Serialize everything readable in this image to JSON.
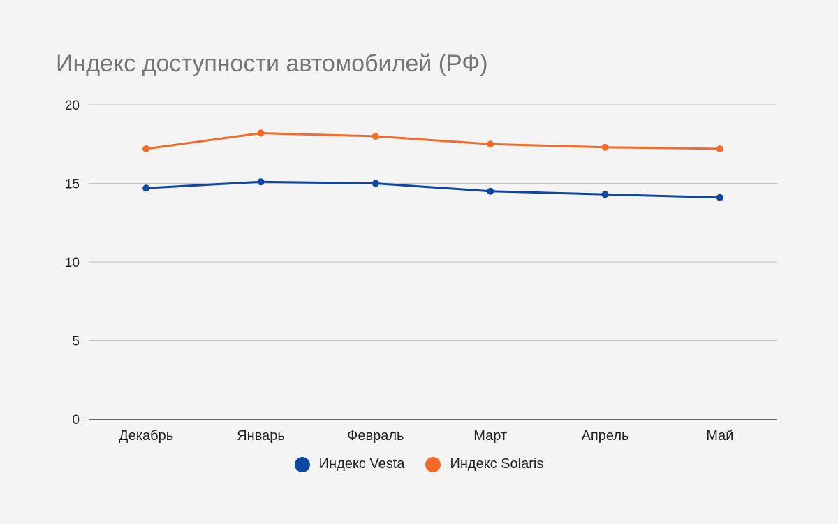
{
  "chart_data": {
    "type": "line",
    "title": "Индекс доступности автомобилей (РФ)",
    "categories": [
      "Декабрь",
      "Январь",
      "Февраль",
      "Март",
      "Апрель",
      "Май"
    ],
    "series": [
      {
        "name": "Индекс Vesta",
        "color": "#0d47a1",
        "values": [
          14.7,
          15.1,
          15.0,
          14.5,
          14.3,
          14.1
        ]
      },
      {
        "name": "Индекс Solaris",
        "color": "#f26b2a",
        "values": [
          17.2,
          18.2,
          18.0,
          17.5,
          17.3,
          17.2
        ]
      }
    ],
    "ylim": [
      0,
      20
    ],
    "yticks": [
      0,
      5,
      10,
      15,
      20
    ],
    "grid": true,
    "legend": "bottom"
  }
}
